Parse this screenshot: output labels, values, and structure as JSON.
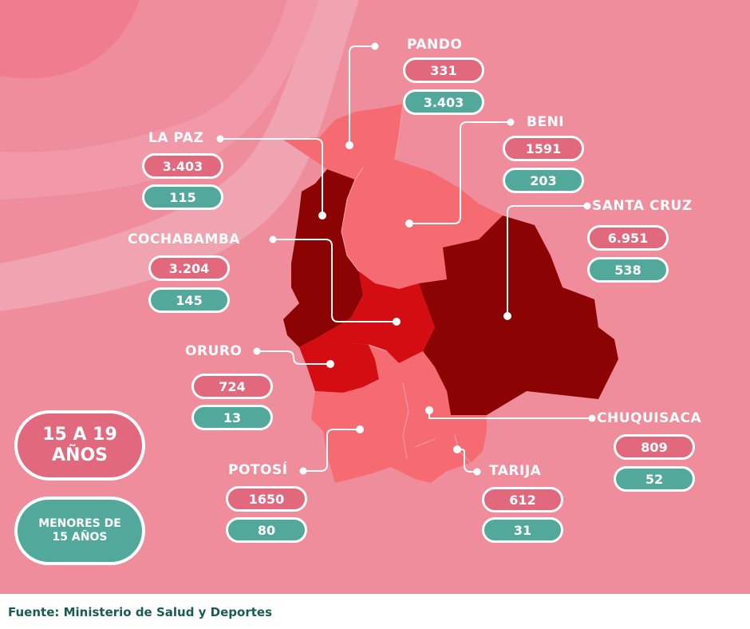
{
  "legend": {
    "group_15_19": "15 A 19 AÑOS",
    "group_under_15": "MENORES DE 15 AÑOS"
  },
  "departments": {
    "pando": {
      "name": "PANDO",
      "age_15_19": "331",
      "under_15": "3.403"
    },
    "beni": {
      "name": "BENI",
      "age_15_19": "1591",
      "under_15": "203"
    },
    "la_paz": {
      "name": "LA PAZ",
      "age_15_19": "3.403",
      "under_15": "115"
    },
    "santa_cruz": {
      "name": "SANTA CRUZ",
      "age_15_19": "6.951",
      "under_15": "538"
    },
    "cochabamba": {
      "name": "COCHABAMBA",
      "age_15_19": "3.204",
      "under_15": "145"
    },
    "oruro": {
      "name": "ORURO",
      "age_15_19": "724",
      "under_15": "13"
    },
    "chuquisaca": {
      "name": "CHUQUISACA",
      "age_15_19": "809",
      "under_15": "52"
    },
    "potosi": {
      "name": "POTOSÍ",
      "age_15_19": "1650",
      "under_15": "80"
    },
    "tarija": {
      "name": "TARIJA",
      "age_15_19": "612",
      "under_15": "31"
    }
  },
  "colors": {
    "background": "#ef8d9d",
    "pill_15_19": "#e2687d",
    "pill_under_15": "#52a99b",
    "region_light": "#f66b72",
    "region_medium": "#d40d12",
    "region_dark": "#8c0303"
  },
  "footer": {
    "source": "Fuente: Ministerio de Salud y Deportes"
  }
}
